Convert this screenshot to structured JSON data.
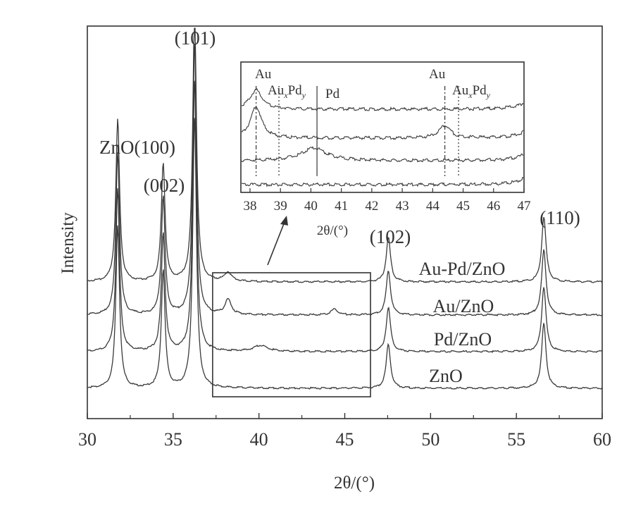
{
  "chart_data": {
    "type": "line",
    "xlabel": "2θ/(°)",
    "ylabel": "Intensity",
    "xlim": [
      30,
      60
    ],
    "xticks": [
      "30",
      "35",
      "40",
      "45",
      "50",
      "55",
      "60"
    ],
    "series": [
      {
        "name": "Au-Pd/ZnO",
        "offset": 3,
        "peaks": [
          {
            "x": 31.77,
            "h": 0.55,
            "w": 0.13
          },
          {
            "x": 34.42,
            "h": 0.4,
            "w": 0.13
          },
          {
            "x": 36.25,
            "h": 0.92,
            "w": 0.13
          },
          {
            "x": 38.2,
            "h": 0.03,
            "w": 0.25
          },
          {
            "x": 47.54,
            "h": 0.15,
            "w": 0.15
          },
          {
            "x": 56.6,
            "h": 0.22,
            "w": 0.15
          }
        ]
      },
      {
        "name": "Au/ZnO",
        "offset": 2,
        "peaks": [
          {
            "x": 31.77,
            "h": 0.55,
            "w": 0.13
          },
          {
            "x": 34.42,
            "h": 0.4,
            "w": 0.13
          },
          {
            "x": 36.25,
            "h": 0.92,
            "w": 0.13
          },
          {
            "x": 38.2,
            "h": 0.05,
            "w": 0.22
          },
          {
            "x": 44.4,
            "h": 0.02,
            "w": 0.22
          },
          {
            "x": 47.54,
            "h": 0.15,
            "w": 0.15
          },
          {
            "x": 56.6,
            "h": 0.22,
            "w": 0.15
          }
        ]
      },
      {
        "name": "Pd/ZnO",
        "offset": 1,
        "peaks": [
          {
            "x": 31.77,
            "h": 0.55,
            "w": 0.13
          },
          {
            "x": 34.42,
            "h": 0.4,
            "w": 0.13
          },
          {
            "x": 36.25,
            "h": 0.92,
            "w": 0.13
          },
          {
            "x": 40.1,
            "h": 0.02,
            "w": 0.5
          },
          {
            "x": 47.54,
            "h": 0.15,
            "w": 0.15
          },
          {
            "x": 56.6,
            "h": 0.22,
            "w": 0.15
          }
        ]
      },
      {
        "name": "ZnO",
        "offset": 0,
        "peaks": [
          {
            "x": 31.77,
            "h": 0.55,
            "w": 0.13
          },
          {
            "x": 34.42,
            "h": 0.4,
            "w": 0.13
          },
          {
            "x": 36.25,
            "h": 0.92,
            "w": 0.13
          },
          {
            "x": 47.54,
            "h": 0.15,
            "w": 0.15
          },
          {
            "x": 56.6,
            "h": 0.22,
            "w": 0.15
          }
        ]
      }
    ],
    "peak_labels": [
      "ZnO(100)",
      "(002)",
      "(101)",
      "(102)",
      "(110)"
    ],
    "sample_labels": [
      "Au-Pd/ZnO",
      "Au/ZnO",
      "Pd/ZnO",
      "ZnO"
    ],
    "highlight_range": [
      37.3,
      46.5
    ],
    "inset": {
      "xlim": [
        37.7,
        47
      ],
      "xticks": [
        "38",
        "39",
        "40",
        "41",
        "42",
        "43",
        "44",
        "45",
        "46",
        "47"
      ],
      "xlabel": "2θ/(°)",
      "reference_lines": [
        {
          "x": 38.2,
          "style": "dash-dot",
          "label": "Au"
        },
        {
          "x": 38.95,
          "style": "dotted",
          "label": "AuxPdy"
        },
        {
          "x": 40.2,
          "style": "solid",
          "label": "Pd"
        },
        {
          "x": 44.4,
          "style": "dash-dot",
          "label": "Au"
        },
        {
          "x": 44.85,
          "style": "dotted",
          "label": "AuxPdy"
        }
      ]
    }
  },
  "labels": {
    "au": "Au",
    "au_x_pd_y_main": "Au",
    "au_x_pd_y_pd": "Pd",
    "sub_x": "x",
    "sub_y": "y",
    "pd": "Pd"
  },
  "style": {
    "line_color": "#3a3a3a",
    "frame_color": "#333333"
  }
}
